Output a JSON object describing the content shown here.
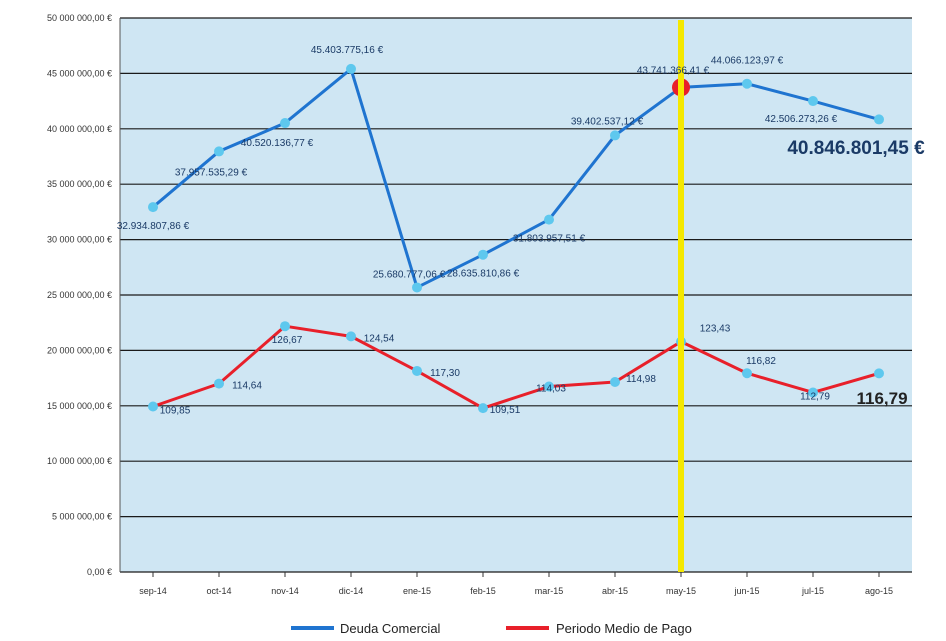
{
  "chart_data": {
    "type": "line",
    "categories": [
      "sep-14",
      "oct-14",
      "nov-14",
      "dic-14",
      "ene-15",
      "feb-15",
      "mar-15",
      "abr-15",
      "may-15",
      "jun-15",
      "jul-15",
      "ago-15"
    ],
    "ylim": [
      0,
      50000000
    ],
    "yticks": [
      "0,00 €",
      "5 000 000,00 €",
      "10 000 000,00 €",
      "15 000 000,00 €",
      "20 000 000,00 €",
      "25 000 000,00 €",
      "30 000 000,00 €",
      "35 000 000,00 €",
      "40 000 000,00 €",
      "45 000 000,00 €",
      "50 000 000,00 €"
    ],
    "series": [
      {
        "name": "Deuda Comercial",
        "color": "#1f74d0",
        "values": [
          32934807.86,
          37957535.29,
          40520136.77,
          45403775.16,
          25680777.06,
          28635810.86,
          31803957.51,
          39402537.12,
          43741366.41,
          44066123.97,
          42506273.26,
          40846801.45
        ],
        "labels": [
          "32.934.807,86 €",
          "37.957.535,29 €",
          "40.520.136,77 €",
          "45.403.775,16 €",
          "25.680.777,06 €",
          "28.635.810,86 €",
          "31.803.957,51 €",
          "39.402.537,12 €",
          "43.741.366,41 €",
          "44.066.123,97 €",
          "42.506.273,26 €",
          "40.846.801,45 €"
        ]
      },
      {
        "name": "Periodo Medio de Pago",
        "color": "#e8202a",
        "values": [
          109.85,
          114.64,
          126.67,
          124.54,
          117.3,
          109.51,
          114.03,
          114.98,
          123.43,
          116.82,
          112.79,
          116.79
        ],
        "labels": [
          "109,85",
          "114,64",
          "126,67",
          "124,54",
          "117,30",
          "109,51",
          "114,03",
          "114,98",
          "123,43",
          "116,82",
          "112,79",
          "116,79"
        ]
      }
    ],
    "marker_category": "may-15",
    "marker_color": "#f5e800",
    "plot_background": "#cfe6f3",
    "grid": true,
    "legend_position": "bottom"
  }
}
